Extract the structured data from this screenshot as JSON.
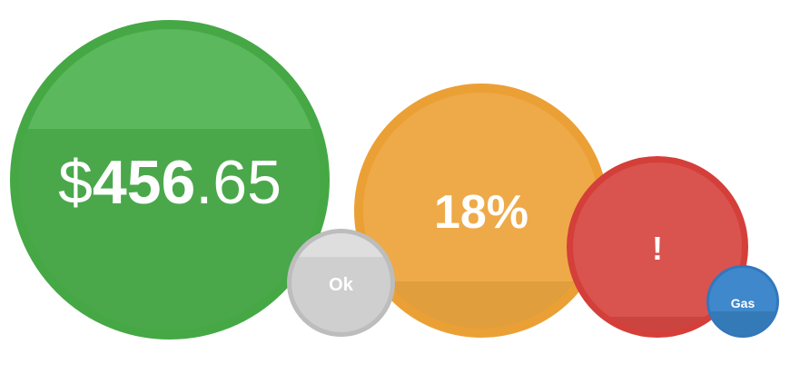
{
  "bubbles": {
    "money": {
      "currency_symbol": "$",
      "whole": "456",
      "fraction": ".65",
      "color": "#4aa84b"
    },
    "ok": {
      "label": "Ok",
      "color": "#cfcfcf"
    },
    "percent": {
      "label": "18%",
      "color": "#eeaa48"
    },
    "alert": {
      "label": "!",
      "color": "#d9534f"
    },
    "gas": {
      "label": "Gas",
      "color": "#3f88cc"
    }
  }
}
